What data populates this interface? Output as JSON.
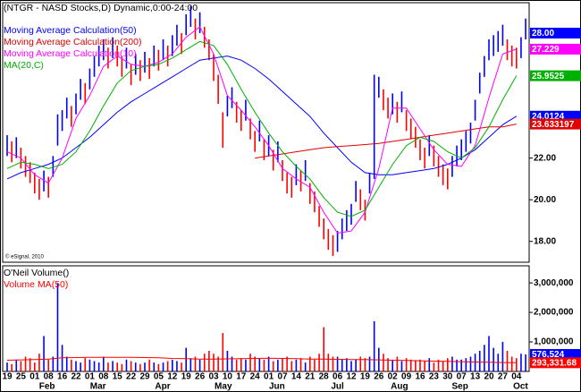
{
  "chart_data": [
    {
      "type": "ohlc",
      "title": "(NTGR - NASD Stocks,D) Dynamic,0:00-24:00",
      "footnote": "© eSignal, 2010",
      "x_labels": [
        "19",
        "25",
        "01",
        "08",
        "16",
        "22",
        "01",
        "08",
        "15",
        "22",
        "29",
        "05",
        "12",
        "19",
        "26",
        "03",
        "10",
        "17",
        "24",
        "01",
        "07",
        "14",
        "21",
        "28",
        "06",
        "12",
        "19",
        "26",
        "02",
        "09",
        "16",
        "23",
        "30",
        "07",
        "13",
        "20",
        "27",
        "04"
      ],
      "months": [
        "Feb",
        "Mar",
        "Apr",
        "May",
        "Jun",
        "Jul",
        "Aug",
        "Sep",
        "Oct"
      ],
      "high": [
        23.1,
        22.8,
        23.0,
        22.5,
        22.1,
        21.8,
        21.3,
        21.0,
        21.4,
        21.1,
        22.1,
        24.1,
        24.3,
        24.9,
        24.5,
        25.1,
        25.8,
        25.6,
        26.3,
        26.9,
        27.4,
        27.7,
        27.3,
        27.8,
        27.4,
        26.9,
        27.3,
        26.5,
        27.0,
        26.7,
        27.1,
        26.8,
        27.4,
        27.2,
        27.7,
        27.4,
        27.9,
        28.4,
        28.0,
        28.9,
        29.3,
        28.7,
        29.0,
        28.3,
        27.7,
        27.0,
        26.0,
        24.2,
        25.0,
        25.4,
        24.7,
        24.3,
        24.8,
        23.9,
        23.3,
        23.8,
        22.9,
        23.1,
        22.4,
        22.8,
        21.9,
        21.3,
        21.1,
        21.7,
        21.4,
        21.9,
        20.8,
        20.4,
        19.7,
        19.1,
        18.6,
        18.3,
        18.5,
        19.1,
        19.5,
        19.8,
        20.9,
        20.5,
        20.0,
        21.3,
        26.0,
        25.9,
        25.3,
        24.9,
        25.1,
        24.7,
        25.2,
        24.3,
        23.9,
        23.5,
        22.9,
        22.5,
        23.1,
        22.6,
        22.1,
        21.7,
        21.5,
        22.1,
        22.6,
        22.9,
        23.3,
        23.7,
        24.8,
        26.1,
        26.9,
        27.7,
        27.9,
        28.1,
        28.4,
        27.7,
        27.4,
        27.3,
        27.8,
        28.7
      ],
      "low": [
        22.1,
        21.8,
        22.0,
        21.5,
        21.1,
        20.8,
        20.3,
        20.0,
        20.4,
        20.1,
        21.1,
        22.6,
        23.3,
        23.9,
        23.5,
        24.1,
        24.8,
        24.6,
        25.3,
        25.9,
        26.4,
        26.7,
        26.3,
        26.8,
        26.4,
        25.9,
        26.3,
        25.5,
        26.0,
        25.7,
        26.1,
        25.8,
        26.4,
        26.2,
        26.7,
        26.4,
        26.9,
        27.4,
        27.0,
        27.9,
        28.3,
        27.7,
        28.0,
        27.3,
        26.7,
        25.7,
        24.6,
        22.5,
        24.0,
        24.4,
        23.7,
        23.3,
        23.8,
        22.9,
        22.3,
        22.8,
        21.9,
        22.1,
        21.4,
        21.8,
        20.9,
        20.3,
        20.1,
        20.7,
        20.4,
        20.9,
        19.8,
        19.4,
        18.7,
        18.1,
        17.6,
        17.3,
        17.5,
        18.1,
        18.5,
        18.8,
        19.9,
        19.5,
        19.0,
        20.3,
        21.0,
        24.9,
        24.3,
        23.9,
        24.1,
        23.7,
        24.2,
        23.3,
        22.9,
        22.5,
        21.9,
        21.5,
        22.1,
        21.6,
        21.1,
        20.7,
        20.5,
        21.1,
        21.6,
        21.9,
        22.3,
        22.7,
        23.8,
        25.1,
        25.9,
        26.7,
        26.9,
        27.1,
        27.4,
        26.7,
        26.4,
        26.3,
        26.8,
        27.7
      ],
      "up_color": "#0000ff",
      "down_color": "#ff0000",
      "series": [
        {
          "name": "Moving Average Calculation(50)",
          "color": "#0000ff",
          "values": [
            21.0,
            21.3,
            21.5,
            21.7,
            22.0,
            22.5,
            23.0,
            23.6,
            24.2,
            24.7,
            25.1,
            25.5,
            25.9,
            26.3,
            26.7,
            26.8,
            26.9,
            26.7,
            26.3,
            25.8,
            25.2,
            24.6,
            24.0,
            23.2,
            22.5,
            21.8,
            21.3,
            21.2,
            21.2,
            21.3,
            21.4,
            21.5,
            21.7,
            22.0,
            22.4,
            23.0,
            23.6,
            24.0124
          ]
        },
        {
          "name": "Moving Average Calculation(200)",
          "color": "#e00000",
          "values": [
            null,
            null,
            null,
            null,
            null,
            null,
            null,
            null,
            null,
            null,
            null,
            null,
            null,
            null,
            null,
            null,
            null,
            null,
            22.0,
            22.1,
            22.2,
            22.3,
            22.4,
            22.5,
            22.55,
            22.6,
            22.65,
            22.7,
            22.8,
            22.9,
            23.0,
            23.1,
            23.2,
            23.3,
            23.4,
            23.5,
            23.5,
            23.633197
          ]
        },
        {
          "name": "Moving Average Calculation(10)",
          "color": "#ff00ff",
          "values": [
            22.3,
            22.0,
            21.2,
            20.8,
            22.0,
            23.9,
            25.0,
            26.4,
            26.9,
            26.5,
            26.4,
            26.6,
            27.0,
            27.8,
            28.3,
            27.0,
            25.0,
            24.3,
            23.5,
            22.6,
            21.5,
            21.0,
            20.6,
            19.4,
            18.4,
            18.5,
            19.4,
            21.5,
            24.4,
            24.4,
            23.4,
            22.4,
            21.7,
            21.6,
            22.6,
            24.9,
            27.0,
            27.229
          ]
        },
        {
          "name": "MA(20,C)",
          "color": "#00b000",
          "values": [
            21.5,
            21.8,
            21.7,
            21.5,
            21.7,
            22.3,
            23.3,
            24.5,
            25.6,
            26.2,
            26.4,
            26.5,
            26.8,
            27.2,
            27.6,
            27.4,
            26.5,
            25.3,
            24.2,
            23.2,
            22.3,
            21.6,
            21.0,
            20.1,
            19.4,
            19.2,
            19.5,
            20.6,
            21.7,
            22.6,
            23.0,
            22.8,
            22.3,
            22.0,
            22.5,
            23.5,
            24.8,
            25.9525
          ]
        }
      ],
      "last_price": {
        "value": 28,
        "label": "28.00"
      },
      "ylim": [
        17.0,
        29.46
      ],
      "yticks": [
        {
          "value": 18,
          "label": "18.00"
        },
        {
          "value": 20,
          "label": "20.00"
        },
        {
          "value": 22,
          "label": "22.00"
        }
      ]
    },
    {
      "type": "bar",
      "title": "O'Neil Volume()",
      "color": "#0000ff",
      "values": [
        300000,
        250000,
        400000,
        350000,
        500000,
        450000,
        300000,
        600000,
        1200000,
        400000,
        500000,
        3000000,
        900000,
        500000,
        400000,
        350000,
        300000,
        450000,
        400000,
        350000,
        300000,
        500000,
        300000,
        350000,
        300000,
        250000,
        400000,
        350000,
        300000,
        250000,
        300000,
        400000,
        300000,
        250000,
        300000,
        350000,
        400000,
        350000,
        300000,
        800000,
        450000,
        500000,
        400000,
        600000,
        700000,
        600000,
        500000,
        1300000,
        700000,
        500000,
        400000,
        450000,
        400000,
        600000,
        500000,
        450000,
        400000,
        500000,
        350000,
        400000,
        450000,
        500000,
        350000,
        400000,
        450000,
        300000,
        500000,
        400000,
        600000,
        1500000,
        600000,
        500000,
        500000,
        400000,
        450000,
        350000,
        400000,
        500000,
        450000,
        500000,
        1700000,
        800000,
        600000,
        450000,
        400000,
        500000,
        350000,
        450000,
        400000,
        350000,
        400000,
        350000,
        450000,
        300000,
        400000,
        350000,
        450000,
        500000,
        400000,
        400000,
        450000,
        500000,
        600000,
        700000,
        900000,
        1200000,
        800000,
        600000,
        1000000,
        700000,
        500000,
        450000,
        600000,
        576524
      ],
      "last_volume": {
        "value": 576524,
        "label": "576,524"
      },
      "series": [
        {
          "name": "Volume MA(50)",
          "color": "#ff0000",
          "values": [
            380000,
            390000,
            400000,
            420000,
            460000,
            470000,
            475000,
            480000,
            480000,
            478000,
            470000,
            460000,
            440000,
            430000,
            420000,
            420000,
            425000,
            430000,
            440000,
            445000,
            440000,
            430000,
            420000,
            415000,
            410000,
            405000,
            400000,
            390000,
            380000,
            370000,
            360000,
            350000,
            340000,
            330000,
            320000,
            310000,
            300000,
            293331.68
          ],
          "last_value": {
            "value": 293331.68,
            "label": "293,331.68"
          }
        }
      ],
      "ylim": [
        0,
        3580000
      ],
      "yticks": [
        {
          "value": 1000000,
          "label": "1,000,000"
        },
        {
          "value": 2000000,
          "label": "2,000,000"
        },
        {
          "value": 3000000,
          "label": "3,000,000"
        }
      ]
    }
  ]
}
